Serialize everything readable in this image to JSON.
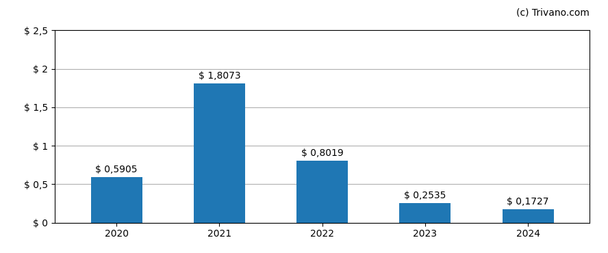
{
  "chart_data": {
    "type": "bar",
    "categories": [
      "2020",
      "2021",
      "2022",
      "2023",
      "2024"
    ],
    "values": [
      0.5905,
      1.8073,
      0.8019,
      0.2535,
      0.1727
    ],
    "value_labels": [
      "$ 0,5905",
      "$ 1,8073",
      "$ 0,8019",
      "$ 0,2535",
      "$ 0,1727"
    ],
    "data_labels": true,
    "ylim": [
      0,
      2.5
    ],
    "yticks": [
      {
        "value": 0,
        "label": "$ 0"
      },
      {
        "value": 0.5,
        "label": "$ 0,5"
      },
      {
        "value": 1.0,
        "label": "$ 1"
      },
      {
        "value": 1.5,
        "label": "$ 1,5"
      },
      {
        "value": 2.0,
        "label": "$ 2"
      },
      {
        "value": 2.5,
        "label": "$ 2,5"
      }
    ],
    "grid": true,
    "annotations": [
      "(c) Trivano.com"
    ]
  }
}
